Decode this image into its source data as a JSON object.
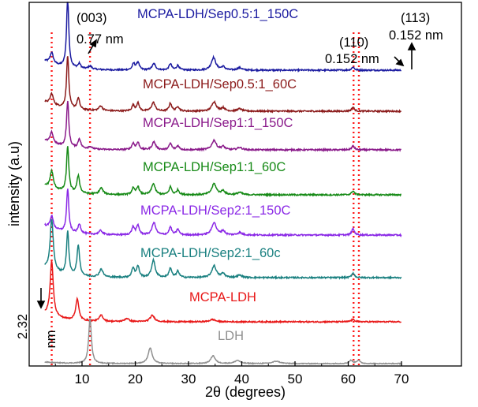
{
  "chart_data": {
    "type": "line",
    "title": "",
    "xlabel": "2θ (degrees)",
    "ylabel": "intensity (a.u)",
    "xlim": [
      3,
      70
    ],
    "x_ticks": [
      10,
      20,
      30,
      40,
      50,
      60,
      70
    ],
    "grid": false,
    "series": [
      {
        "name": "MCPA-LDH/Sep0.5:1_150C",
        "color": "#1a1aa0",
        "baseline": 89,
        "noise": 0.9,
        "bg": 12,
        "peaks": [
          [
            4.3,
            14,
            0.35
          ],
          [
            7.3,
            88,
            0.25
          ],
          [
            9.5,
            6,
            0.3
          ],
          [
            11.5,
            4,
            0.4
          ],
          [
            19.7,
            8,
            0.3
          ],
          [
            20.5,
            10,
            0.3
          ],
          [
            23.5,
            8,
            0.4
          ],
          [
            26.6,
            8,
            0.3
          ],
          [
            28,
            6,
            0.3
          ],
          [
            34.7,
            16,
            0.5
          ],
          [
            36.5,
            4,
            0.4
          ],
          [
            39.6,
            3,
            0.5
          ],
          [
            60.9,
            4,
            0.3
          ]
        ]
      },
      {
        "name": "MCPA-LDH/Sep0.5:1_60C",
        "color": "#8b1a1a",
        "baseline": 141,
        "noise": 0.9,
        "bg": 12,
        "peaks": [
          [
            4.3,
            14,
            0.35
          ],
          [
            7.3,
            67,
            0.25
          ],
          [
            9.3,
            14,
            0.3
          ],
          [
            13.5,
            6,
            0.4
          ],
          [
            19.6,
            7,
            0.3
          ],
          [
            20.5,
            10,
            0.3
          ],
          [
            23.4,
            11,
            0.4
          ],
          [
            26.6,
            10,
            0.3
          ],
          [
            28,
            6,
            0.3
          ],
          [
            34.8,
            12,
            0.5
          ],
          [
            36.5,
            4,
            0.4
          ],
          [
            39.6,
            3,
            0.5
          ],
          [
            60.9,
            5,
            0.3
          ]
        ]
      },
      {
        "name": "MCPA-LDH/Sep1:1_150C",
        "color": "#8a1a8a",
        "baseline": 190,
        "noise": 0.9,
        "bg": 12,
        "peaks": [
          [
            4.3,
            14,
            0.35
          ],
          [
            7.3,
            58,
            0.25
          ],
          [
            9.5,
            12,
            0.3
          ],
          [
            11.5,
            3,
            0.4
          ],
          [
            19.6,
            8,
            0.3
          ],
          [
            20.5,
            9,
            0.3
          ],
          [
            23.5,
            10,
            0.4
          ],
          [
            26.6,
            8,
            0.3
          ],
          [
            28,
            5,
            0.3
          ],
          [
            34.8,
            12,
            0.5
          ],
          [
            36.5,
            4,
            0.4
          ],
          [
            39.6,
            3,
            0.5
          ],
          [
            60.9,
            5,
            0.3
          ]
        ]
      },
      {
        "name": "MCPA-LDH/Sep1:1_60C",
        "color": "#168a16",
        "baseline": 247,
        "noise": 0.9,
        "bg": 12,
        "peaks": [
          [
            4.3,
            22,
            0.35
          ],
          [
            7.3,
            58,
            0.25
          ],
          [
            9.3,
            22,
            0.3
          ],
          [
            13.6,
            8,
            0.4
          ],
          [
            19.6,
            8,
            0.3
          ],
          [
            20.5,
            10,
            0.3
          ],
          [
            23.4,
            14,
            0.4
          ],
          [
            26.6,
            10,
            0.3
          ],
          [
            28,
            6,
            0.3
          ],
          [
            34.8,
            14,
            0.5
          ],
          [
            36.5,
            5,
            0.4
          ],
          [
            39.6,
            3,
            0.5
          ],
          [
            60.9,
            5,
            0.3
          ]
        ]
      },
      {
        "name": "MCPA-LDH/Sep2:1_150C",
        "color": "#8a28e6",
        "baseline": 298,
        "noise": 0.9,
        "bg": 12,
        "peaks": [
          [
            4.3,
            16,
            0.35
          ],
          [
            7.3,
            55,
            0.25
          ],
          [
            9.5,
            12,
            0.3
          ],
          [
            13.5,
            5,
            0.4
          ],
          [
            19.6,
            10,
            0.3
          ],
          [
            20.5,
            12,
            0.3
          ],
          [
            23.5,
            16,
            0.4
          ],
          [
            26.6,
            10,
            0.3
          ],
          [
            28,
            7,
            0.3
          ],
          [
            34.8,
            16,
            0.5
          ],
          [
            36.5,
            5,
            0.4
          ],
          [
            39.6,
            3,
            0.5
          ],
          [
            60.9,
            8,
            0.3
          ]
        ]
      },
      {
        "name": "MCPA-LDH/Sep2:1_60c",
        "color": "#1a8080",
        "baseline": 352,
        "noise": 0.9,
        "bg": 12,
        "peaks": [
          [
            4.3,
            66,
            0.35
          ],
          [
            7.3,
            55,
            0.25
          ],
          [
            9.3,
            38,
            0.3
          ],
          [
            13.6,
            10,
            0.4
          ],
          [
            19.6,
            12,
            0.3
          ],
          [
            20.5,
            14,
            0.3
          ],
          [
            23.4,
            22,
            0.4
          ],
          [
            26.6,
            12,
            0.3
          ],
          [
            28,
            8,
            0.3
          ],
          [
            34.8,
            15,
            0.5
          ],
          [
            36.5,
            5,
            0.4
          ],
          [
            39.6,
            3,
            0.5
          ],
          [
            60.9,
            6,
            0.3
          ]
        ]
      },
      {
        "name": "MCPA-LDH",
        "color": "#e81818",
        "baseline": 408,
        "noise": 0.8,
        "bg": 10,
        "peaks": [
          [
            4.3,
            70,
            0.35
          ],
          [
            9.1,
            27,
            0.35
          ],
          [
            13.6,
            8,
            0.4
          ],
          [
            18.4,
            4,
            0.5
          ],
          [
            23.2,
            8,
            0.5
          ],
          [
            34.5,
            3,
            0.6
          ],
          [
            60.9,
            3,
            0.4
          ]
        ]
      },
      {
        "name": "LDH",
        "color": "#909090",
        "baseline": 461,
        "noise": 0.5,
        "bg": 2,
        "peaks": [
          [
            11.5,
            58,
            0.3
          ],
          [
            22.8,
            20,
            0.45
          ],
          [
            34.6,
            10,
            0.5
          ],
          [
            39.2,
            4,
            0.6
          ],
          [
            46.5,
            3,
            0.8
          ],
          [
            60.5,
            4,
            0.4
          ],
          [
            61.9,
            4,
            0.4
          ]
        ]
      }
    ],
    "reference_lines": [
      4.3,
      11.5,
      61.0,
      62.0
    ],
    "annotations": [
      {
        "lines": [
          "(003)",
          "0.77 nm"
        ]
      },
      {
        "lines": [
          "(110)",
          "0.152 nm"
        ]
      },
      {
        "lines": [
          "(113)",
          "0.152 nm"
        ]
      },
      {
        "lines": [
          "2.32",
          "nm"
        ]
      }
    ]
  }
}
